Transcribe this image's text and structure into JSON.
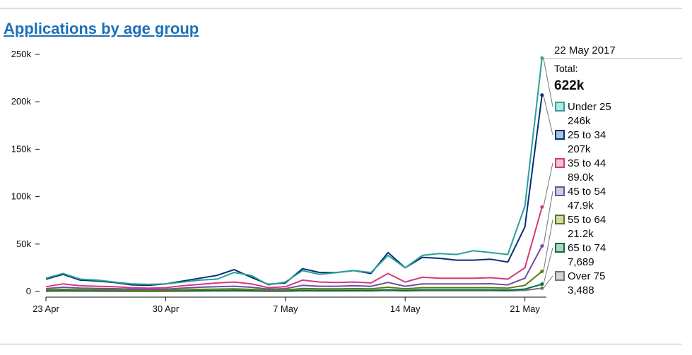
{
  "page": {
    "title": "Applications by age group"
  },
  "chart_data": {
    "type": "line",
    "title": "Applications by age group",
    "xlabel": "",
    "ylabel": "",
    "ylim": [
      0,
      260000
    ],
    "y_ticks": [
      0,
      50000,
      100000,
      150000,
      200000,
      250000
    ],
    "y_tick_labels": [
      "0",
      "50k",
      "100k",
      "150k",
      "200k",
      "250k"
    ],
    "x_dates": [
      "23 Apr",
      "24 Apr",
      "25 Apr",
      "26 Apr",
      "27 Apr",
      "28 Apr",
      "29 Apr",
      "30 Apr",
      "1 May",
      "2 May",
      "3 May",
      "4 May",
      "5 May",
      "6 May",
      "7 May",
      "8 May",
      "9 May",
      "10 May",
      "11 May",
      "12 May",
      "13 May",
      "14 May",
      "15 May",
      "16 May",
      "17 May",
      "18 May",
      "19 May",
      "20 May",
      "21 May",
      "22 May"
    ],
    "x_ticks": [
      {
        "index": 0,
        "label": "23 Apr"
      },
      {
        "index": 7,
        "label": "30 Apr"
      },
      {
        "index": 14,
        "label": "7 May"
      },
      {
        "index": 21,
        "label": "14 May"
      },
      {
        "index": 28,
        "label": "21 May"
      }
    ],
    "grid": false,
    "legend_position": "right",
    "tooltip": {
      "date": "22 May 2017",
      "total_label": "Total:",
      "total_value": "622k"
    },
    "series": [
      {
        "name": "Under 25",
        "color": "#28a197",
        "value_label": "246k",
        "values": [
          14000,
          19000,
          13000,
          12000,
          10000,
          8000,
          7500,
          8000,
          10000,
          12000,
          13000,
          20000,
          17000,
          7000,
          10000,
          22000,
          18000,
          20000,
          22000,
          20000,
          38000,
          25000,
          38000,
          40000,
          39000,
          43000,
          41000,
          39000,
          90000,
          246000
        ]
      },
      {
        "name": "25 to 34",
        "color": "#003078",
        "value_label": "207k",
        "values": [
          13000,
          18000,
          12000,
          11000,
          9500,
          7000,
          6500,
          8000,
          11000,
          14000,
          17000,
          23000,
          15000,
          7500,
          9000,
          24000,
          20000,
          20000,
          22000,
          19000,
          41000,
          25000,
          36000,
          35000,
          33000,
          33000,
          34000,
          31000,
          68000,
          207000
        ]
      },
      {
        "name": "35 to 44",
        "color": "#d53880",
        "value_label": "89.0k",
        "values": [
          5000,
          8000,
          6000,
          5500,
          5000,
          4000,
          3500,
          4000,
          6000,
          7500,
          9000,
          10000,
          8000,
          4000,
          5000,
          12000,
          10000,
          9500,
          10000,
          9000,
          19000,
          10000,
          15000,
          14000,
          14000,
          14000,
          14500,
          13000,
          25000,
          89000
        ]
      },
      {
        "name": "45 to 54",
        "color": "#6f4fa0",
        "value_label": "47.9k",
        "values": [
          3000,
          4500,
          3500,
          3200,
          3000,
          2500,
          2200,
          2500,
          3500,
          4500,
          5000,
          5500,
          4500,
          2500,
          3000,
          6500,
          5500,
          5500,
          6000,
          5500,
          9500,
          5500,
          8000,
          8000,
          8000,
          8000,
          8200,
          7000,
          14000,
          47900
        ]
      },
      {
        "name": "55 to 64",
        "color": "#5b7a0a",
        "value_label": "21.2k",
        "values": [
          1500,
          2200,
          1800,
          1600,
          1500,
          1200,
          1000,
          1200,
          1700,
          2200,
          2500,
          2800,
          2200,
          1200,
          1500,
          3200,
          2800,
          2800,
          3000,
          2800,
          4500,
          2800,
          4000,
          4000,
          4000,
          4000,
          4000,
          3500,
          6500,
          21200
        ]
      },
      {
        "name": "65 to 74",
        "color": "#00703c",
        "value_label": "7,689",
        "values": [
          600,
          900,
          700,
          650,
          600,
          500,
          400,
          500,
          700,
          900,
          1000,
          1100,
          900,
          500,
          600,
          1300,
          1100,
          1100,
          1200,
          1100,
          1800,
          1100,
          1600,
          1600,
          1600,
          1600,
          1600,
          1400,
          2500,
          7689
        ]
      },
      {
        "name": "Over 75",
        "color": "#6f777b",
        "value_label": "3,488",
        "values": [
          300,
          450,
          350,
          320,
          300,
          250,
          200,
          250,
          350,
          450,
          500,
          550,
          450,
          250,
          300,
          650,
          550,
          550,
          600,
          550,
          900,
          550,
          800,
          800,
          800,
          800,
          800,
          700,
          1200,
          3488
        ]
      }
    ]
  }
}
